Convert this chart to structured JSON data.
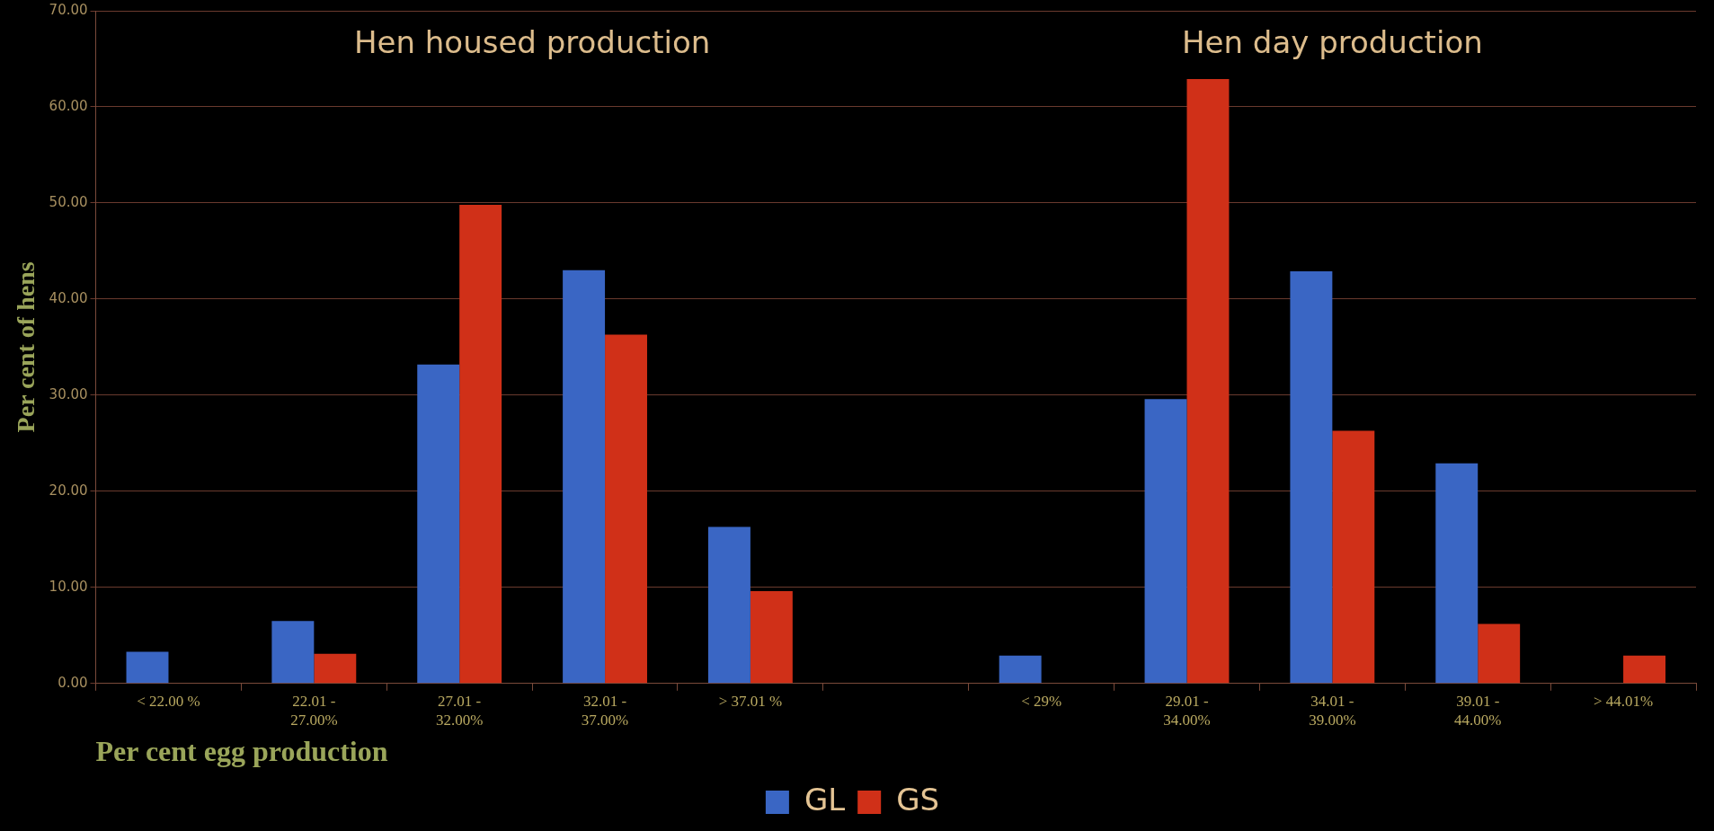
{
  "chart_data": {
    "type": "bar",
    "annotations": [
      "Hen housed production",
      "Hen day production"
    ],
    "xlabel": "Per cent egg production",
    "ylabel": "Per cent of hens",
    "categories": [
      "< 22.00 %",
      "22.01 - 27.00%",
      "27.01 - 32.00%",
      "32.01 - 37.00%",
      "> 37.01 %",
      null,
      "< 29%",
      "29.01 - 34.00%",
      "34.01 - 39.00%",
      "39.01 - 44.00%",
      "> 44.01%"
    ],
    "series": [
      {
        "name": "GL",
        "color": "#3a66c4",
        "values": [
          3.3,
          6.5,
          33.2,
          43.0,
          16.3,
          null,
          2.9,
          29.6,
          42.9,
          22.9,
          null
        ]
      },
      {
        "name": "GS",
        "color": "#d03018",
        "values": [
          null,
          3.1,
          49.8,
          36.3,
          9.6,
          null,
          null,
          62.9,
          26.3,
          6.2,
          2.9
        ]
      }
    ],
    "ylim": [
      0,
      70
    ],
    "yticks": [
      {
        "value": 0,
        "label": "0.00"
      },
      {
        "value": 10,
        "label": "10.00"
      },
      {
        "value": 20,
        "label": "20.00"
      },
      {
        "value": 30,
        "label": "30.00"
      },
      {
        "value": 40,
        "label": "40.00"
      },
      {
        "value": 50,
        "label": "50.00"
      },
      {
        "value": 60,
        "label": "60.00"
      },
      {
        "value": 70,
        "label": "70.00"
      }
    ],
    "grid": "y",
    "legend": "bottom"
  }
}
